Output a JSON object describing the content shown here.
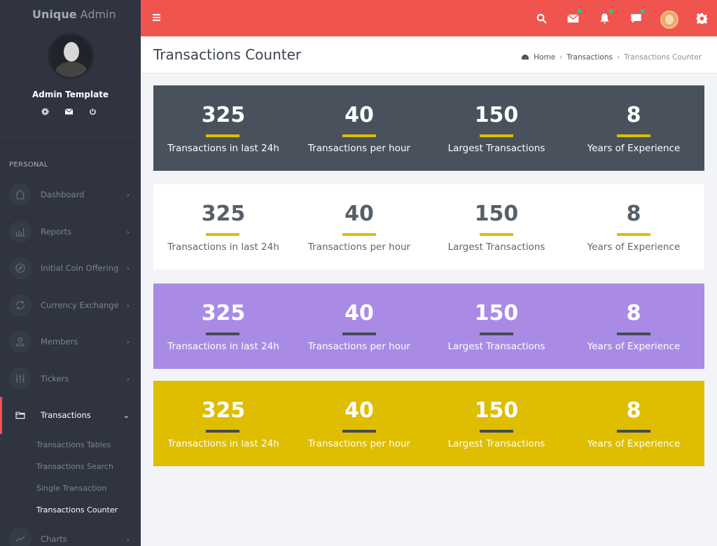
{
  "brand": {
    "bold": "Unique",
    "rest": " Admin"
  },
  "user": {
    "name": "Admin Template",
    "icons": [
      "gear-icon",
      "mail-icon",
      "power-icon"
    ]
  },
  "sidebar": {
    "section": "PERSONAL",
    "items": [
      {
        "label": "Dashboard",
        "icon": "home-icon"
      },
      {
        "label": "Reports",
        "icon": "bar-chart-icon"
      },
      {
        "label": "Initial Coin Offering",
        "icon": "compass-icon"
      },
      {
        "label": "Currency Exchange",
        "icon": "refresh-icon"
      },
      {
        "label": "Members",
        "icon": "user-icon"
      },
      {
        "label": "Tickers",
        "icon": "sliders-icon"
      },
      {
        "label": "Transactions",
        "icon": "folder-icon"
      },
      {
        "label": "Charts",
        "icon": "line-chart-icon"
      }
    ],
    "subitems": [
      "Transactions Tables",
      "Transactions Search",
      "Single Transaction",
      "Transactions Counter"
    ]
  },
  "topbar": {
    "icons": [
      "menu-icon",
      "search-icon",
      "mail-icon",
      "bell-icon",
      "chat-icon",
      "avatar",
      "gear-icon"
    ]
  },
  "page": {
    "title": "Transactions Counter",
    "breadcrumb": [
      "Home",
      "Transactions",
      "Transactions Counter"
    ]
  },
  "stats": [
    {
      "value": "325",
      "label": "Transactions in last 24h"
    },
    {
      "value": "40",
      "label": "Transactions per hour"
    },
    {
      "value": "150",
      "label": "Largest Transactions"
    },
    {
      "value": "8",
      "label": "Years of Experience"
    }
  ],
  "colors": {
    "accent": "#f0544f",
    "sidebar": "#2f3440",
    "panel_dark": "#49515c",
    "panel_light": "#ffffff",
    "panel_purple": "#a98be6",
    "panel_yellow": "#dfbd00"
  }
}
